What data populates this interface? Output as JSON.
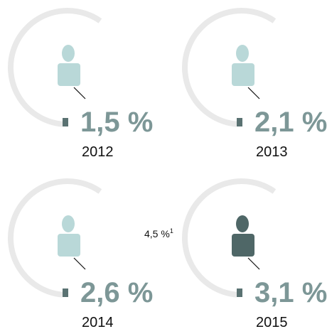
{
  "panels": [
    {
      "value": "1,5 %",
      "year": "2012",
      "highlight": false
    },
    {
      "value": "2,1 %",
      "year": "2013",
      "highlight": false
    },
    {
      "value": "2,6 %",
      "year": "2014",
      "highlight": false
    },
    {
      "value": "3,1 %",
      "year": "2015",
      "highlight": true
    }
  ],
  "annotation": {
    "text": "4,5 %",
    "sup": "1"
  }
}
